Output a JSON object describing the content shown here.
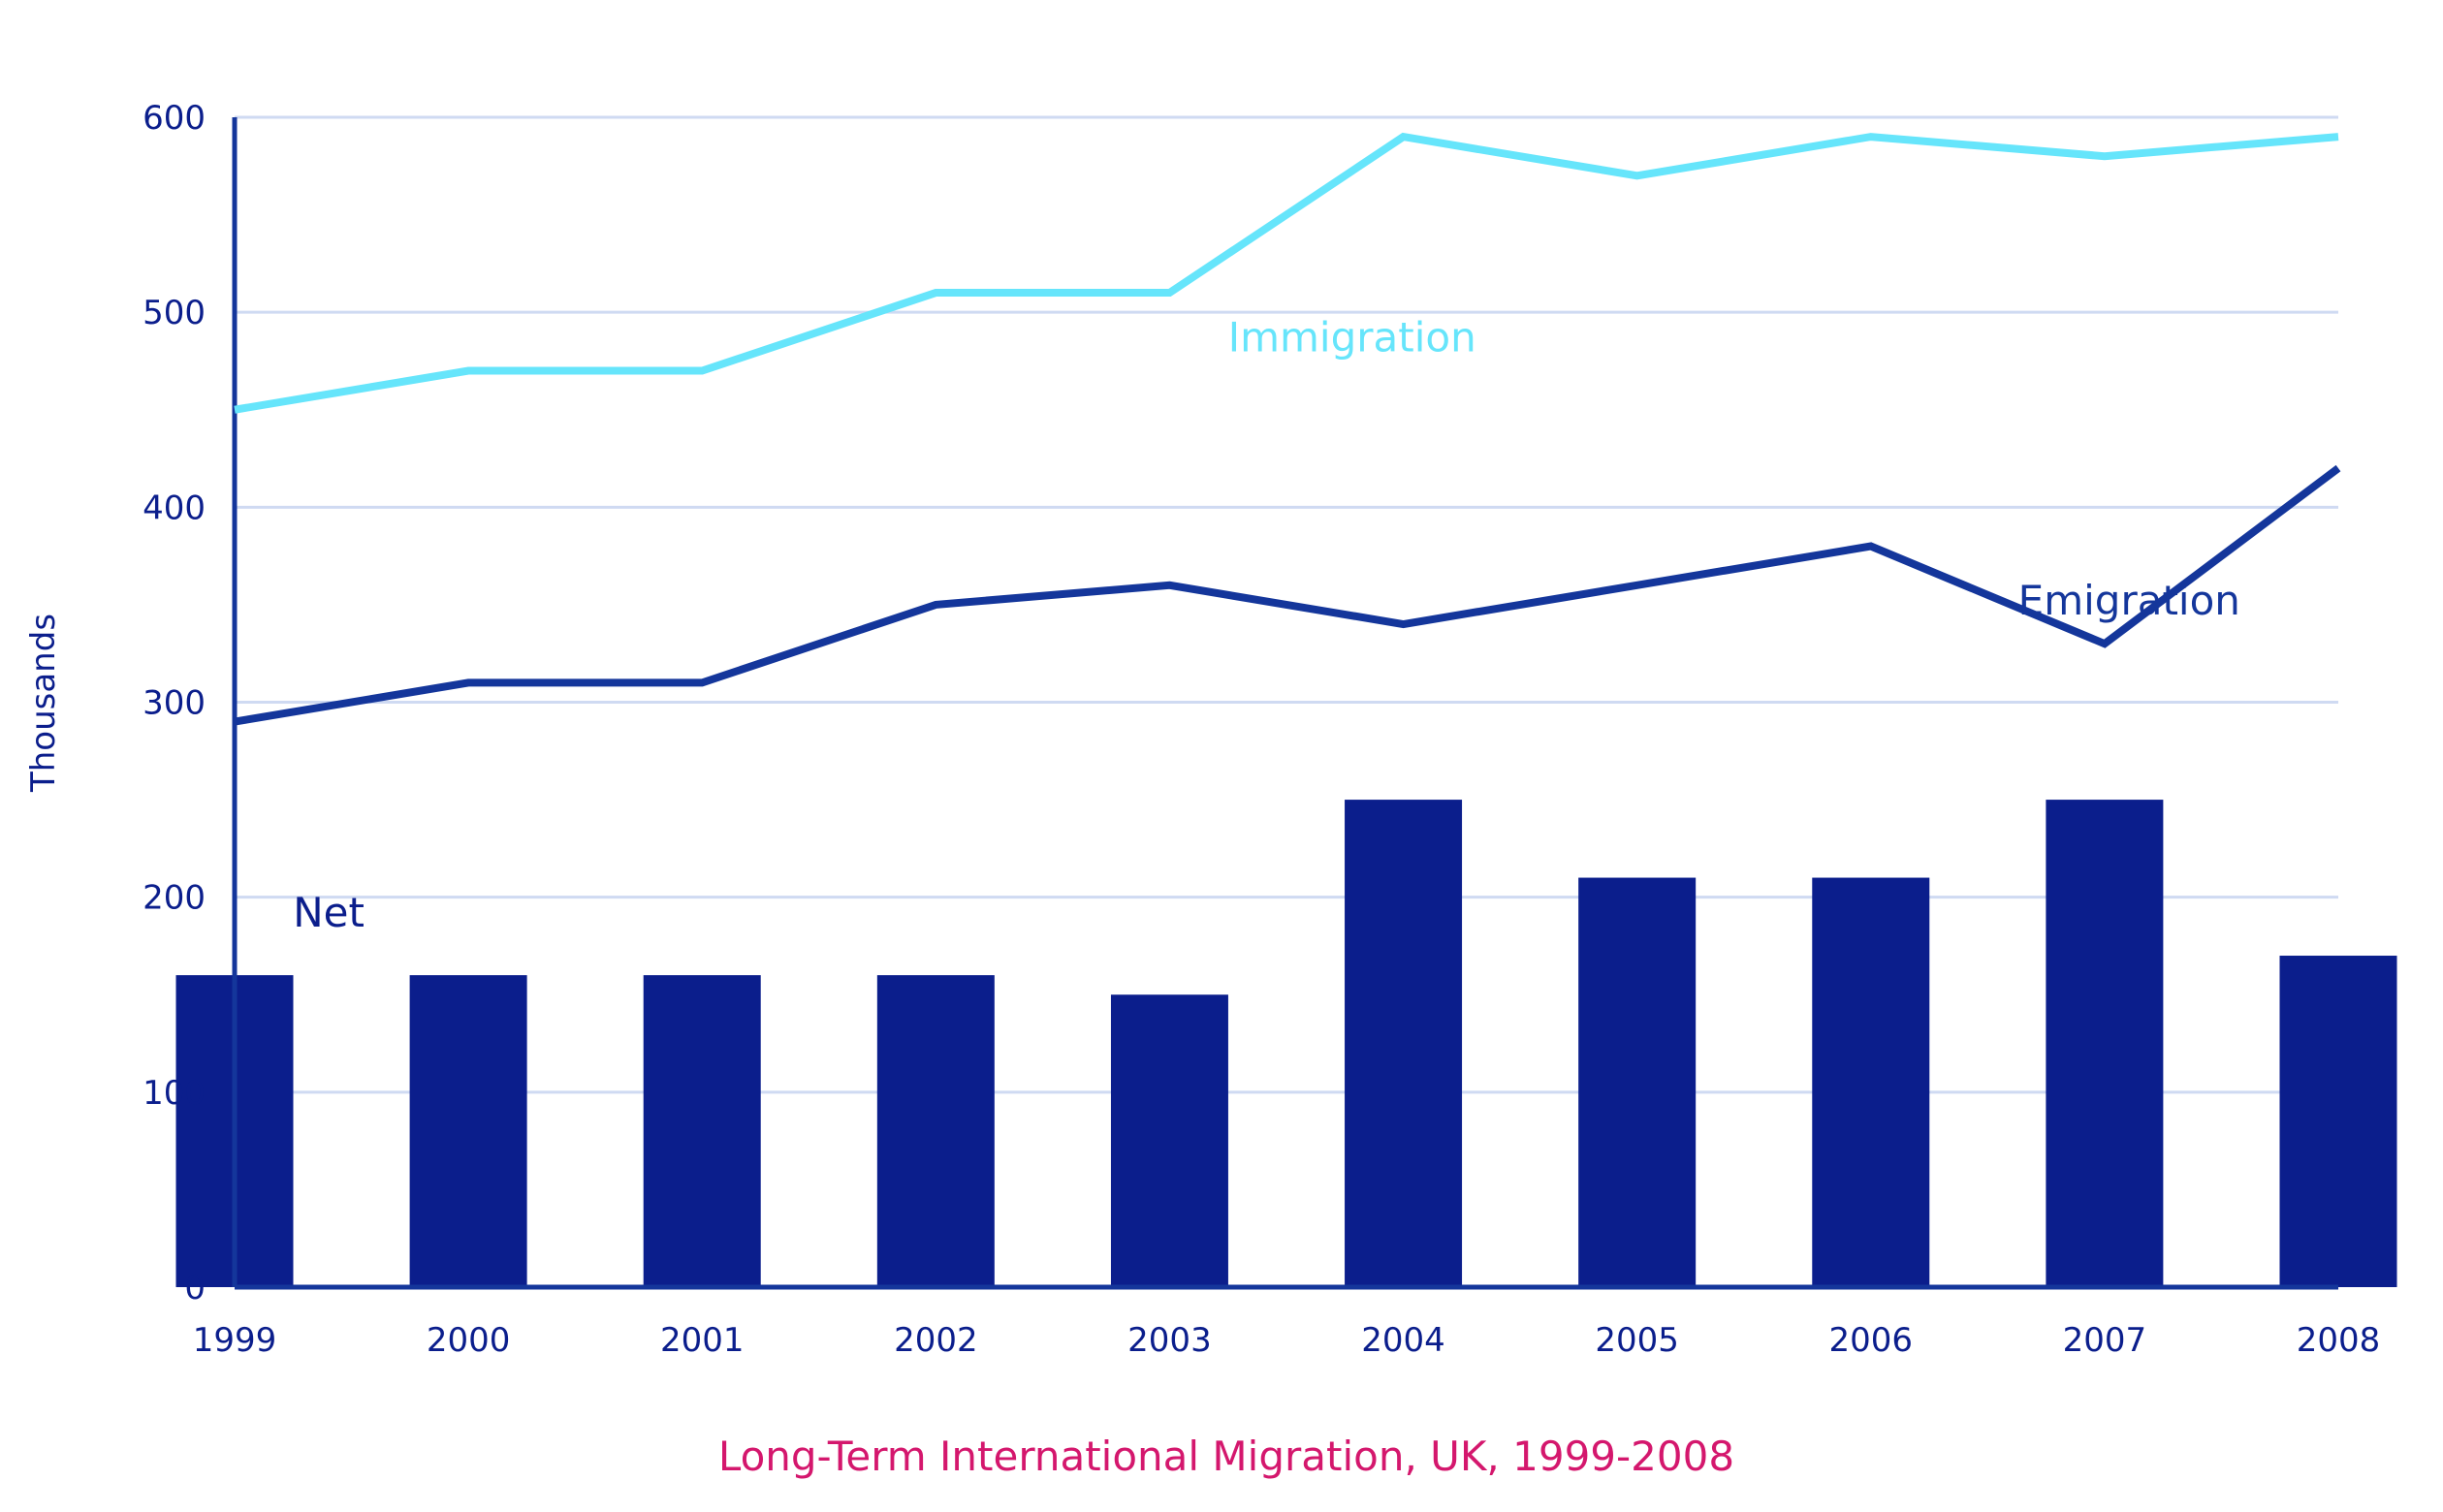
{
  "chart_data": {
    "type": "bar+line",
    "title": "Long-Term International Migration, UK, 1999-2008",
    "xlabel": "",
    "ylabel": "Thousands",
    "categories": [
      "1999",
      "2000",
      "2001",
      "2002",
      "2003",
      "2004",
      "2005",
      "2006",
      "2007",
      "2008"
    ],
    "ylim": [
      0,
      600
    ],
    "yticks": [
      0,
      100,
      200,
      300,
      400,
      500,
      600
    ],
    "grid": true,
    "legend": "inline labels",
    "series": [
      {
        "name": "Immigration",
        "type": "line",
        "color": "#66e5fb",
        "values": [
          450,
          470,
          470,
          510,
          510,
          590,
          570,
          590,
          580,
          590
        ]
      },
      {
        "name": "Emigration",
        "type": "line",
        "color": "#14369b",
        "values": [
          290,
          310,
          310,
          350,
          360,
          340,
          360,
          380,
          330,
          420
        ]
      },
      {
        "name": "Net",
        "type": "bar",
        "color": "#0b1e8c",
        "values": [
          160,
          160,
          160,
          160,
          150,
          250,
          210,
          210,
          250,
          170
        ]
      }
    ]
  },
  "colors": {
    "axis": "#14369b",
    "grid": "#cfdaf2",
    "tick_text": "#0b1e8c",
    "title": "#d4176d"
  }
}
